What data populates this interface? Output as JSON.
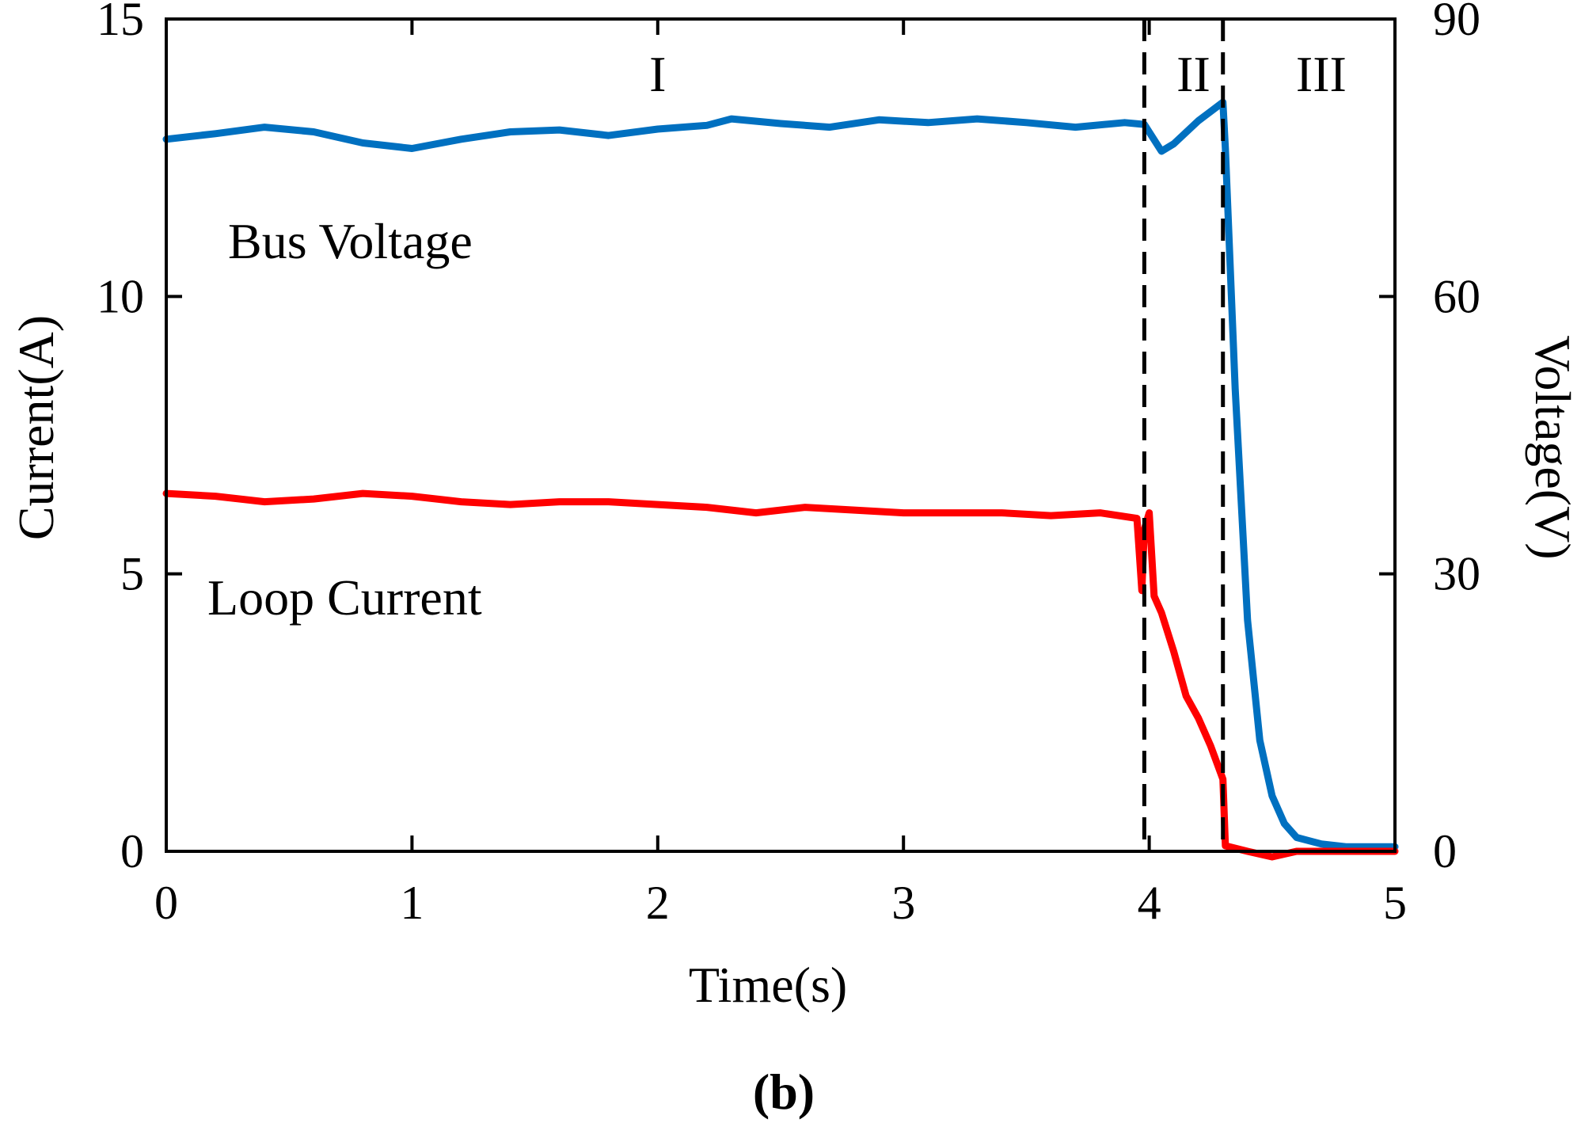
{
  "chart_data": {
    "type": "line",
    "panel_label": "(b)",
    "xlabel": "Time(s)",
    "ylabel_left": "Current(A)",
    "ylabel_right": "Voltage(V)",
    "xlim": [
      0,
      5
    ],
    "ylim_left": [
      0,
      15
    ],
    "ylim_right": [
      0,
      90
    ],
    "x_ticks": [
      0,
      1,
      2,
      3,
      4,
      5
    ],
    "y_ticks_left": [
      0,
      5,
      10,
      15
    ],
    "y_ticks_right": [
      0,
      30,
      60,
      90
    ],
    "grid": false,
    "region_dividers": [
      3.98,
      4.3
    ],
    "regions": [
      {
        "label": "I",
        "x": 2.0
      },
      {
        "label": "II",
        "x": 4.18
      },
      {
        "label": "III",
        "x": 4.7
      }
    ],
    "annotations": [
      {
        "text": "Bus Voltage",
        "series": "Bus Voltage"
      },
      {
        "text": "Loop Current",
        "series": "Loop Current"
      }
    ],
    "colors": {
      "bus_voltage": "#0070C0",
      "loop_current": "#FF0000",
      "axis": "#000000"
    },
    "series": [
      {
        "name": "Bus Voltage",
        "axis": "right",
        "color": "#0070C0",
        "x": [
          0,
          0.2,
          0.4,
          0.6,
          0.8,
          1.0,
          1.2,
          1.4,
          1.6,
          1.8,
          2.0,
          2.2,
          2.3,
          2.5,
          2.7,
          2.9,
          3.1,
          3.3,
          3.5,
          3.7,
          3.9,
          3.98,
          4.05,
          4.1,
          4.2,
          4.3,
          4.31,
          4.35,
          4.4,
          4.45,
          4.5,
          4.55,
          4.6,
          4.7,
          4.8,
          5.0
        ],
        "y": [
          77.0,
          77.6,
          78.3,
          77.8,
          76.6,
          76.0,
          77.0,
          77.8,
          78.0,
          77.4,
          78.1,
          78.5,
          79.2,
          78.7,
          78.3,
          79.1,
          78.8,
          79.2,
          78.8,
          78.3,
          78.8,
          78.6,
          75.7,
          76.5,
          79.0,
          81.0,
          76.0,
          50.0,
          25.0,
          12.0,
          6.0,
          3.0,
          1.5,
          0.8,
          0.5,
          0.5
        ]
      },
      {
        "name": "Loop Current",
        "axis": "left",
        "color": "#FF0000",
        "x": [
          0,
          0.2,
          0.4,
          0.6,
          0.8,
          1.0,
          1.2,
          1.4,
          1.6,
          1.8,
          2.0,
          2.2,
          2.4,
          2.6,
          2.8,
          3.0,
          3.2,
          3.4,
          3.6,
          3.8,
          3.95,
          3.97,
          3.98,
          4.0,
          4.02,
          4.05,
          4.1,
          4.15,
          4.2,
          4.25,
          4.3,
          4.31,
          4.4,
          4.5,
          4.6,
          4.8,
          5.0
        ],
        "y": [
          6.45,
          6.4,
          6.3,
          6.35,
          6.45,
          6.4,
          6.3,
          6.25,
          6.3,
          6.3,
          6.25,
          6.2,
          6.1,
          6.2,
          6.15,
          6.1,
          6.1,
          6.1,
          6.05,
          6.1,
          6.0,
          4.7,
          5.8,
          6.1,
          4.6,
          4.3,
          3.6,
          2.8,
          2.4,
          1.9,
          1.3,
          0.1,
          0.0,
          -0.1,
          0.0,
          0.0,
          0.0
        ]
      }
    ]
  }
}
